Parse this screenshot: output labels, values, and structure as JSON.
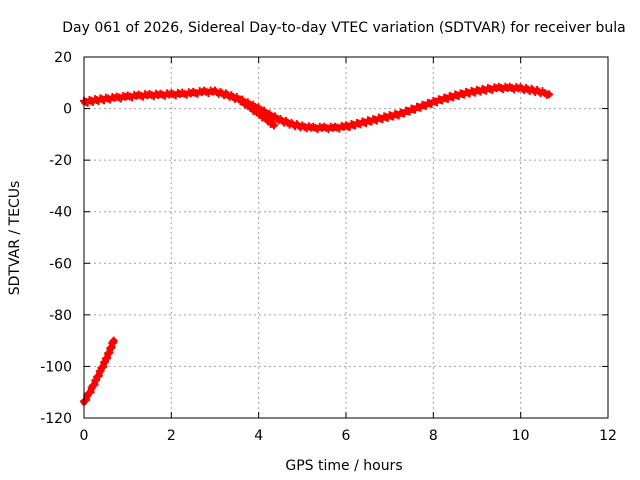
{
  "chart_data": {
    "type": "scatter",
    "title": "Day 061 of 2026, Sidereal Day-to-day VTEC variation (SDTVAR) for receiver bula",
    "xlabel": "GPS time / hours",
    "ylabel": "SDTVAR / TECUs",
    "xlim": [
      0,
      12
    ],
    "ylim": [
      -120,
      20
    ],
    "xticks": [
      0,
      2,
      4,
      6,
      8,
      10,
      12
    ],
    "yticks": [
      -120,
      -100,
      -80,
      -60,
      -40,
      -20,
      0,
      20
    ],
    "xtick_labels": [
      "0",
      "2",
      "4",
      "6",
      "8",
      "10",
      "12"
    ],
    "ytick_labels": [
      "-120",
      "-100",
      "-80",
      "-60",
      "-40",
      "-20",
      "0",
      "20"
    ],
    "grid": true,
    "marker": "plus",
    "series": [
      {
        "name": "SDTVAR",
        "color": "#ff0000",
        "segments": [
          {
            "label": "main-trace",
            "x": [
              0.0,
              0.25,
              0.5,
              0.75,
              1.0,
              1.25,
              1.5,
              1.75,
              2.0,
              2.25,
              2.5,
              2.75,
              3.0,
              3.25,
              3.5,
              3.75,
              4.0,
              4.25,
              4.5,
              4.75,
              5.0,
              5.25,
              5.5,
              5.75,
              6.0,
              6.25,
              6.5,
              6.75,
              7.0,
              7.25,
              7.5,
              7.75,
              8.0,
              8.25,
              8.5,
              8.75,
              9.0,
              9.25,
              9.5,
              9.75,
              10.0,
              10.25,
              10.5,
              10.65
            ],
            "y": [
              2.5,
              3.2,
              3.8,
              4.2,
              4.6,
              5.0,
              5.2,
              5.3,
              5.5,
              5.7,
              6.0,
              6.5,
              6.5,
              5.5,
              4.0,
              2.0,
              0.0,
              -2.5,
              -4.5,
              -6.0,
              -7.0,
              -7.5,
              -7.5,
              -7.5,
              -7.0,
              -6.0,
              -5.0,
              -4.0,
              -3.0,
              -2.0,
              -0.5,
              1.0,
              2.5,
              3.8,
              5.0,
              6.0,
              6.8,
              7.5,
              8.0,
              8.0,
              7.8,
              7.2,
              6.3,
              5.5
            ]
          },
          {
            "label": "dip-branch",
            "x": [
              3.6,
              3.8,
              4.0,
              4.2,
              4.35
            ],
            "y": [
              3.0,
              0.5,
              -2.0,
              -4.5,
              -6.5
            ]
          },
          {
            "label": "low-branch",
            "x": [
              0.0,
              0.1,
              0.2,
              0.3,
              0.4,
              0.5,
              0.6,
              0.68
            ],
            "y": [
              -114.0,
              -111.0,
              -108.0,
              -104.5,
              -101.0,
              -97.5,
              -93.5,
              -90.0
            ]
          }
        ]
      }
    ]
  }
}
